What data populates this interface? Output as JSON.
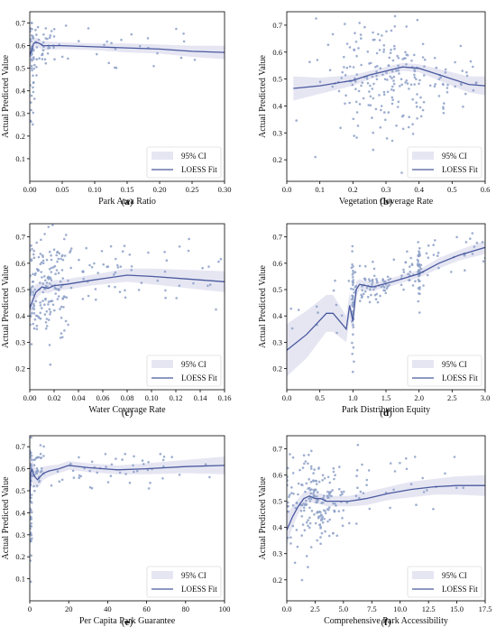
{
  "colors": {
    "fit": "#4a5a9e",
    "ci": "#e6e6f3",
    "points": "#8da0c8",
    "axis": "#000000"
  },
  "legend": {
    "ci_label": "95% CI",
    "fit_label": "LOESS Fit",
    "position": "lower-right"
  },
  "chart_data": [
    {
      "type": "scatter",
      "panel": "a",
      "xlabel": "Park Area Ratio",
      "ylabel": "Actual Predicted Value",
      "xlim": [
        0,
        0.3
      ],
      "ylim": [
        0.0,
        0.75
      ],
      "xticks": [
        "0.00",
        "0.05",
        "0.10",
        "0.15",
        "0.20",
        "0.25",
        "0.30"
      ],
      "yticks": [
        "0.1",
        "0.2",
        "0.3",
        "0.4",
        "0.5",
        "0.6",
        "0.7"
      ],
      "fit": [
        [
          0.0,
          0.56
        ],
        [
          0.003,
          0.58
        ],
        [
          0.006,
          0.61
        ],
        [
          0.01,
          0.615
        ],
        [
          0.015,
          0.61
        ],
        [
          0.02,
          0.6
        ],
        [
          0.05,
          0.6
        ],
        [
          0.1,
          0.595
        ],
        [
          0.15,
          0.59
        ],
        [
          0.2,
          0.585
        ],
        [
          0.25,
          0.575
        ],
        [
          0.3,
          0.57
        ]
      ],
      "ci_width": [
        0.08,
        0.05,
        0.03,
        0.02,
        0.02,
        0.02,
        0.015,
        0.015,
        0.02,
        0.02,
        0.025,
        0.03
      ],
      "clusters": [
        {
          "x": 0.015,
          "y": 0.6,
          "sx": 0.015,
          "sy": 0.05,
          "n": 55
        },
        {
          "x": 0.003,
          "y": 0.45,
          "sx": 0.002,
          "sy": 0.15,
          "n": 30
        },
        {
          "x": 0.15,
          "y": 0.58,
          "sx": 0.08,
          "sy": 0.05,
          "n": 28
        }
      ]
    },
    {
      "type": "scatter",
      "panel": "b",
      "xlabel": "Vegetation Coverage Rate",
      "ylabel": "Actual Predicted Value",
      "xlim": [
        0,
        0.6
      ],
      "ylim": [
        0.12,
        0.75
      ],
      "xticks": [
        "0.0",
        "0.1",
        "0.2",
        "0.3",
        "0.4",
        "0.5",
        "0.6"
      ],
      "yticks": [
        "0.2",
        "0.3",
        "0.4",
        "0.5",
        "0.6",
        "0.7"
      ],
      "fit": [
        [
          0.02,
          0.465
        ],
        [
          0.1,
          0.475
        ],
        [
          0.2,
          0.495
        ],
        [
          0.25,
          0.515
        ],
        [
          0.3,
          0.53
        ],
        [
          0.35,
          0.545
        ],
        [
          0.4,
          0.54
        ],
        [
          0.45,
          0.52
        ],
        [
          0.5,
          0.5
        ],
        [
          0.55,
          0.48
        ],
        [
          0.6,
          0.475
        ]
      ],
      "ci_width": [
        0.045,
        0.03,
        0.02,
        0.015,
        0.015,
        0.015,
        0.015,
        0.02,
        0.025,
        0.03,
        0.035
      ],
      "clusters": [
        {
          "x": 0.3,
          "y": 0.5,
          "sx": 0.1,
          "sy": 0.1,
          "n": 210
        },
        {
          "x": 0.5,
          "y": 0.48,
          "sx": 0.06,
          "sy": 0.08,
          "n": 25
        }
      ]
    },
    {
      "type": "scatter",
      "panel": "c",
      "xlabel": "Water Coverage Rate",
      "ylabel": "Actual Predicted Value",
      "xlim": [
        0,
        0.16
      ],
      "ylim": [
        0.12,
        0.75
      ],
      "xticks": [
        "0.00",
        "0.02",
        "0.04",
        "0.06",
        "0.08",
        "0.10",
        "0.12",
        "0.14",
        "0.16"
      ],
      "yticks": [
        "0.2",
        "0.3",
        "0.4",
        "0.5",
        "0.6",
        "0.7"
      ],
      "fit": [
        [
          0.0,
          0.43
        ],
        [
          0.005,
          0.49
        ],
        [
          0.01,
          0.51
        ],
        [
          0.015,
          0.505
        ],
        [
          0.02,
          0.515
        ],
        [
          0.03,
          0.52
        ],
        [
          0.05,
          0.535
        ],
        [
          0.08,
          0.555
        ],
        [
          0.1,
          0.55
        ],
        [
          0.13,
          0.54
        ],
        [
          0.16,
          0.53
        ]
      ],
      "ci_width": [
        0.06,
        0.03,
        0.02,
        0.02,
        0.02,
        0.02,
        0.02,
        0.025,
        0.03,
        0.035,
        0.04
      ],
      "clusters": [
        {
          "x": 0.015,
          "y": 0.5,
          "sx": 0.012,
          "sy": 0.1,
          "n": 170
        },
        {
          "x": 0.06,
          "y": 0.55,
          "sx": 0.035,
          "sy": 0.07,
          "n": 55
        },
        {
          "x": 0.13,
          "y": 0.55,
          "sx": 0.02,
          "sy": 0.06,
          "n": 10
        }
      ]
    },
    {
      "type": "scatter",
      "panel": "d",
      "xlabel": "Park Distribution Equity",
      "ylabel": "Actual Predicted Value",
      "xlim": [
        0,
        3.0
      ],
      "ylim": [
        0.12,
        0.75
      ],
      "xticks": [
        "0.0",
        "0.5",
        "1.0",
        "1.5",
        "2.0",
        "2.5",
        "3.0"
      ],
      "yticks": [
        "0.2",
        "0.3",
        "0.4",
        "0.5",
        "0.6",
        "0.7"
      ],
      "fit": [
        [
          0.0,
          0.27
        ],
        [
          0.3,
          0.33
        ],
        [
          0.6,
          0.41
        ],
        [
          0.7,
          0.41
        ],
        [
          0.8,
          0.38
        ],
        [
          0.9,
          0.35
        ],
        [
          0.95,
          0.44
        ],
        [
          1.0,
          0.38
        ],
        [
          1.05,
          0.5
        ],
        [
          1.1,
          0.52
        ],
        [
          1.3,
          0.51
        ],
        [
          1.6,
          0.53
        ],
        [
          2.0,
          0.56
        ],
        [
          2.3,
          0.6
        ],
        [
          2.6,
          0.63
        ],
        [
          3.0,
          0.66
        ]
      ],
      "ci_width": [
        0.1,
        0.09,
        0.07,
        0.07,
        0.06,
        0.05,
        0.05,
        0.04,
        0.03,
        0.02,
        0.015,
        0.015,
        0.015,
        0.02,
        0.02,
        0.025
      ],
      "clusters": [
        {
          "x": 1.3,
          "y": 0.52,
          "sx": 0.2,
          "sy": 0.04,
          "n": 70
        },
        {
          "x": 1.0,
          "y": 0.45,
          "sx": 0.01,
          "sy": 0.09,
          "n": 40
        },
        {
          "x": 2.0,
          "y": 0.57,
          "sx": 0.01,
          "sy": 0.06,
          "n": 40
        },
        {
          "x": 1.85,
          "y": 0.55,
          "sx": 0.12,
          "sy": 0.04,
          "n": 30
        },
        {
          "x": 2.6,
          "y": 0.64,
          "sx": 0.25,
          "sy": 0.04,
          "n": 25
        },
        {
          "x": 0.4,
          "y": 0.4,
          "sx": 0.25,
          "sy": 0.05,
          "n": 10
        }
      ]
    },
    {
      "type": "scatter",
      "panel": "e",
      "xlabel": "Per Capita Park Guarantee",
      "ylabel": "Actual Predicted Value",
      "xlim": [
        0,
        100
      ],
      "ylim": [
        0.0,
        0.75
      ],
      "xticks": [
        "0",
        "20",
        "40",
        "60",
        "80",
        "100"
      ],
      "yticks": [
        "0.1",
        "0.2",
        "0.3",
        "0.4",
        "0.5",
        "0.6",
        "0.7"
      ],
      "fit": [
        [
          0.0,
          0.45
        ],
        [
          0.5,
          0.58
        ],
        [
          1,
          0.6
        ],
        [
          2,
          0.57
        ],
        [
          4,
          0.55
        ],
        [
          7,
          0.58
        ],
        [
          10,
          0.59
        ],
        [
          15,
          0.6
        ],
        [
          20,
          0.615
        ],
        [
          30,
          0.605
        ],
        [
          45,
          0.595
        ],
        [
          60,
          0.6
        ],
        [
          80,
          0.61
        ],
        [
          100,
          0.615
        ]
      ],
      "ci_width": [
        0.12,
        0.08,
        0.06,
        0.05,
        0.04,
        0.03,
        0.025,
        0.02,
        0.02,
        0.02,
        0.02,
        0.025,
        0.03,
        0.04
      ],
      "clusters": [
        {
          "x": 3,
          "y": 0.6,
          "sx": 3,
          "sy": 0.05,
          "n": 45
        },
        {
          "x": 0.5,
          "y": 0.4,
          "sx": 0.3,
          "sy": 0.15,
          "n": 35
        },
        {
          "x": 45,
          "y": 0.6,
          "sx": 22,
          "sy": 0.04,
          "n": 55
        }
      ]
    },
    {
      "type": "scatter",
      "panel": "f",
      "xlabel": "Comprehensive Park Accessibility",
      "ylabel": "Actual Predicted Value",
      "xlim": [
        0,
        17.5
      ],
      "ylim": [
        0.12,
        0.75
      ],
      "xticks": [
        "0.0",
        "2.5",
        "5.0",
        "7.5",
        "10.0",
        "12.5",
        "15.0",
        "17.5"
      ],
      "yticks": [
        "0.2",
        "0.3",
        "0.4",
        "0.5",
        "0.6",
        "0.7"
      ],
      "fit": [
        [
          0.0,
          0.39
        ],
        [
          0.5,
          0.44
        ],
        [
          1,
          0.48
        ],
        [
          1.5,
          0.51
        ],
        [
          2,
          0.52
        ],
        [
          2.5,
          0.51
        ],
        [
          3,
          0.51
        ],
        [
          3.5,
          0.5
        ],
        [
          4.5,
          0.5
        ],
        [
          5.5,
          0.5
        ],
        [
          7,
          0.51
        ],
        [
          9,
          0.53
        ],
        [
          11,
          0.545
        ],
        [
          13,
          0.555
        ],
        [
          15,
          0.56
        ],
        [
          17.5,
          0.56
        ]
      ],
      "ci_width": [
        0.06,
        0.04,
        0.03,
        0.025,
        0.02,
        0.02,
        0.02,
        0.02,
        0.02,
        0.02,
        0.025,
        0.025,
        0.03,
        0.03,
        0.035,
        0.04
      ],
      "clusters": [
        {
          "x": 2.5,
          "y": 0.5,
          "sx": 1.4,
          "sy": 0.08,
          "n": 190
        },
        {
          "x": 8,
          "y": 0.55,
          "sx": 3,
          "sy": 0.06,
          "n": 30
        },
        {
          "x": 15,
          "y": 0.57,
          "sx": 1.5,
          "sy": 0.05,
          "n": 6
        }
      ]
    }
  ],
  "panel_labels": [
    "(a)",
    "(b)",
    "(c)",
    "(d)",
    "(e)",
    "(f)"
  ]
}
